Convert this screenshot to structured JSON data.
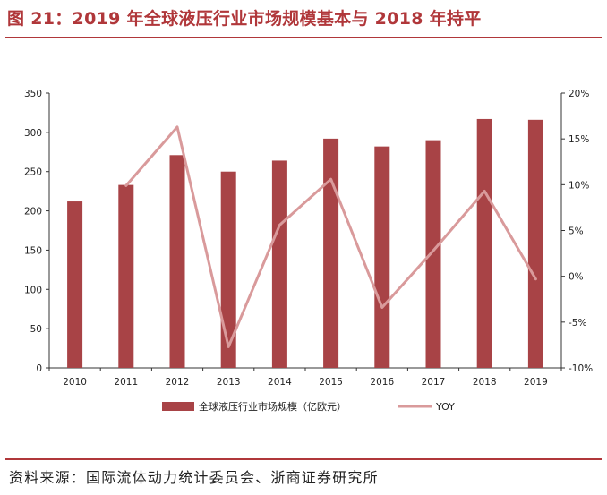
{
  "header": {
    "title": "图 21：2019 年全球液压行业市场规模基本与 2018 年持平"
  },
  "footer": {
    "source": "资料来源：国际流体动力统计委员会、浙商证券研究所"
  },
  "colors": {
    "bar": "#a84346",
    "line": "#d99a9b",
    "accent": "#b0373a"
  },
  "chart_data": {
    "type": "bar",
    "categories": [
      "2010",
      "2011",
      "2012",
      "2013",
      "2014",
      "2015",
      "2016",
      "2017",
      "2018",
      "2019"
    ],
    "series": [
      {
        "name": "全球液压行业市场规模（亿欧元）",
        "type": "bar",
        "axis": "left",
        "values": [
          212,
          233,
          271,
          250,
          264,
          292,
          282,
          290,
          317,
          316
        ]
      },
      {
        "name": "YOY",
        "type": "line",
        "axis": "right",
        "values": [
          null,
          9.9,
          16.3,
          -7.7,
          5.6,
          10.6,
          -3.4,
          2.8,
          9.3,
          -0.3
        ]
      }
    ],
    "ylim_left": [
      0,
      350
    ],
    "yticks_left": [
      0,
      50,
      100,
      150,
      200,
      250,
      300,
      350
    ],
    "ylim_right": [
      -10,
      20
    ],
    "yticks_right": [
      -10,
      -5,
      0,
      5,
      10,
      15,
      20
    ],
    "ytick_labels_right": [
      "-10%",
      "-5%",
      "0%",
      "5%",
      "10%",
      "15%",
      "20%"
    ],
    "legend_position": "bottom",
    "grid": false
  }
}
